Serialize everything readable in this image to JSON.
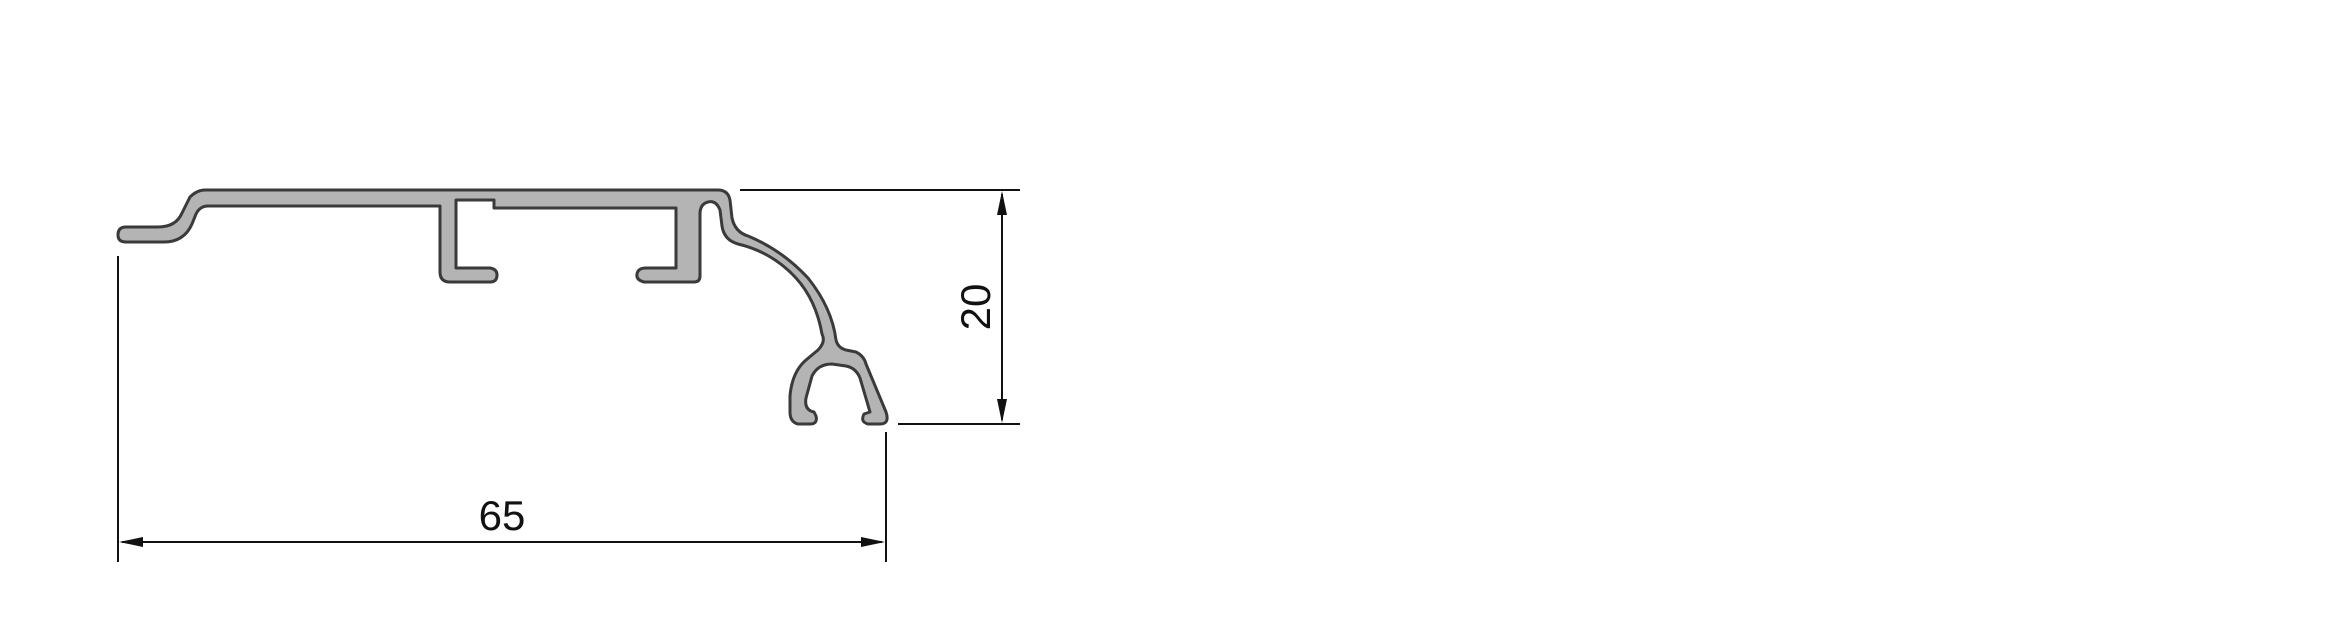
{
  "dimensions": {
    "width_label": "65",
    "height_label": "20"
  },
  "colors": {
    "profile_fill": "#b4b4b4",
    "profile_outline": "#3a3a3a",
    "dimension_lines": "#111111"
  }
}
